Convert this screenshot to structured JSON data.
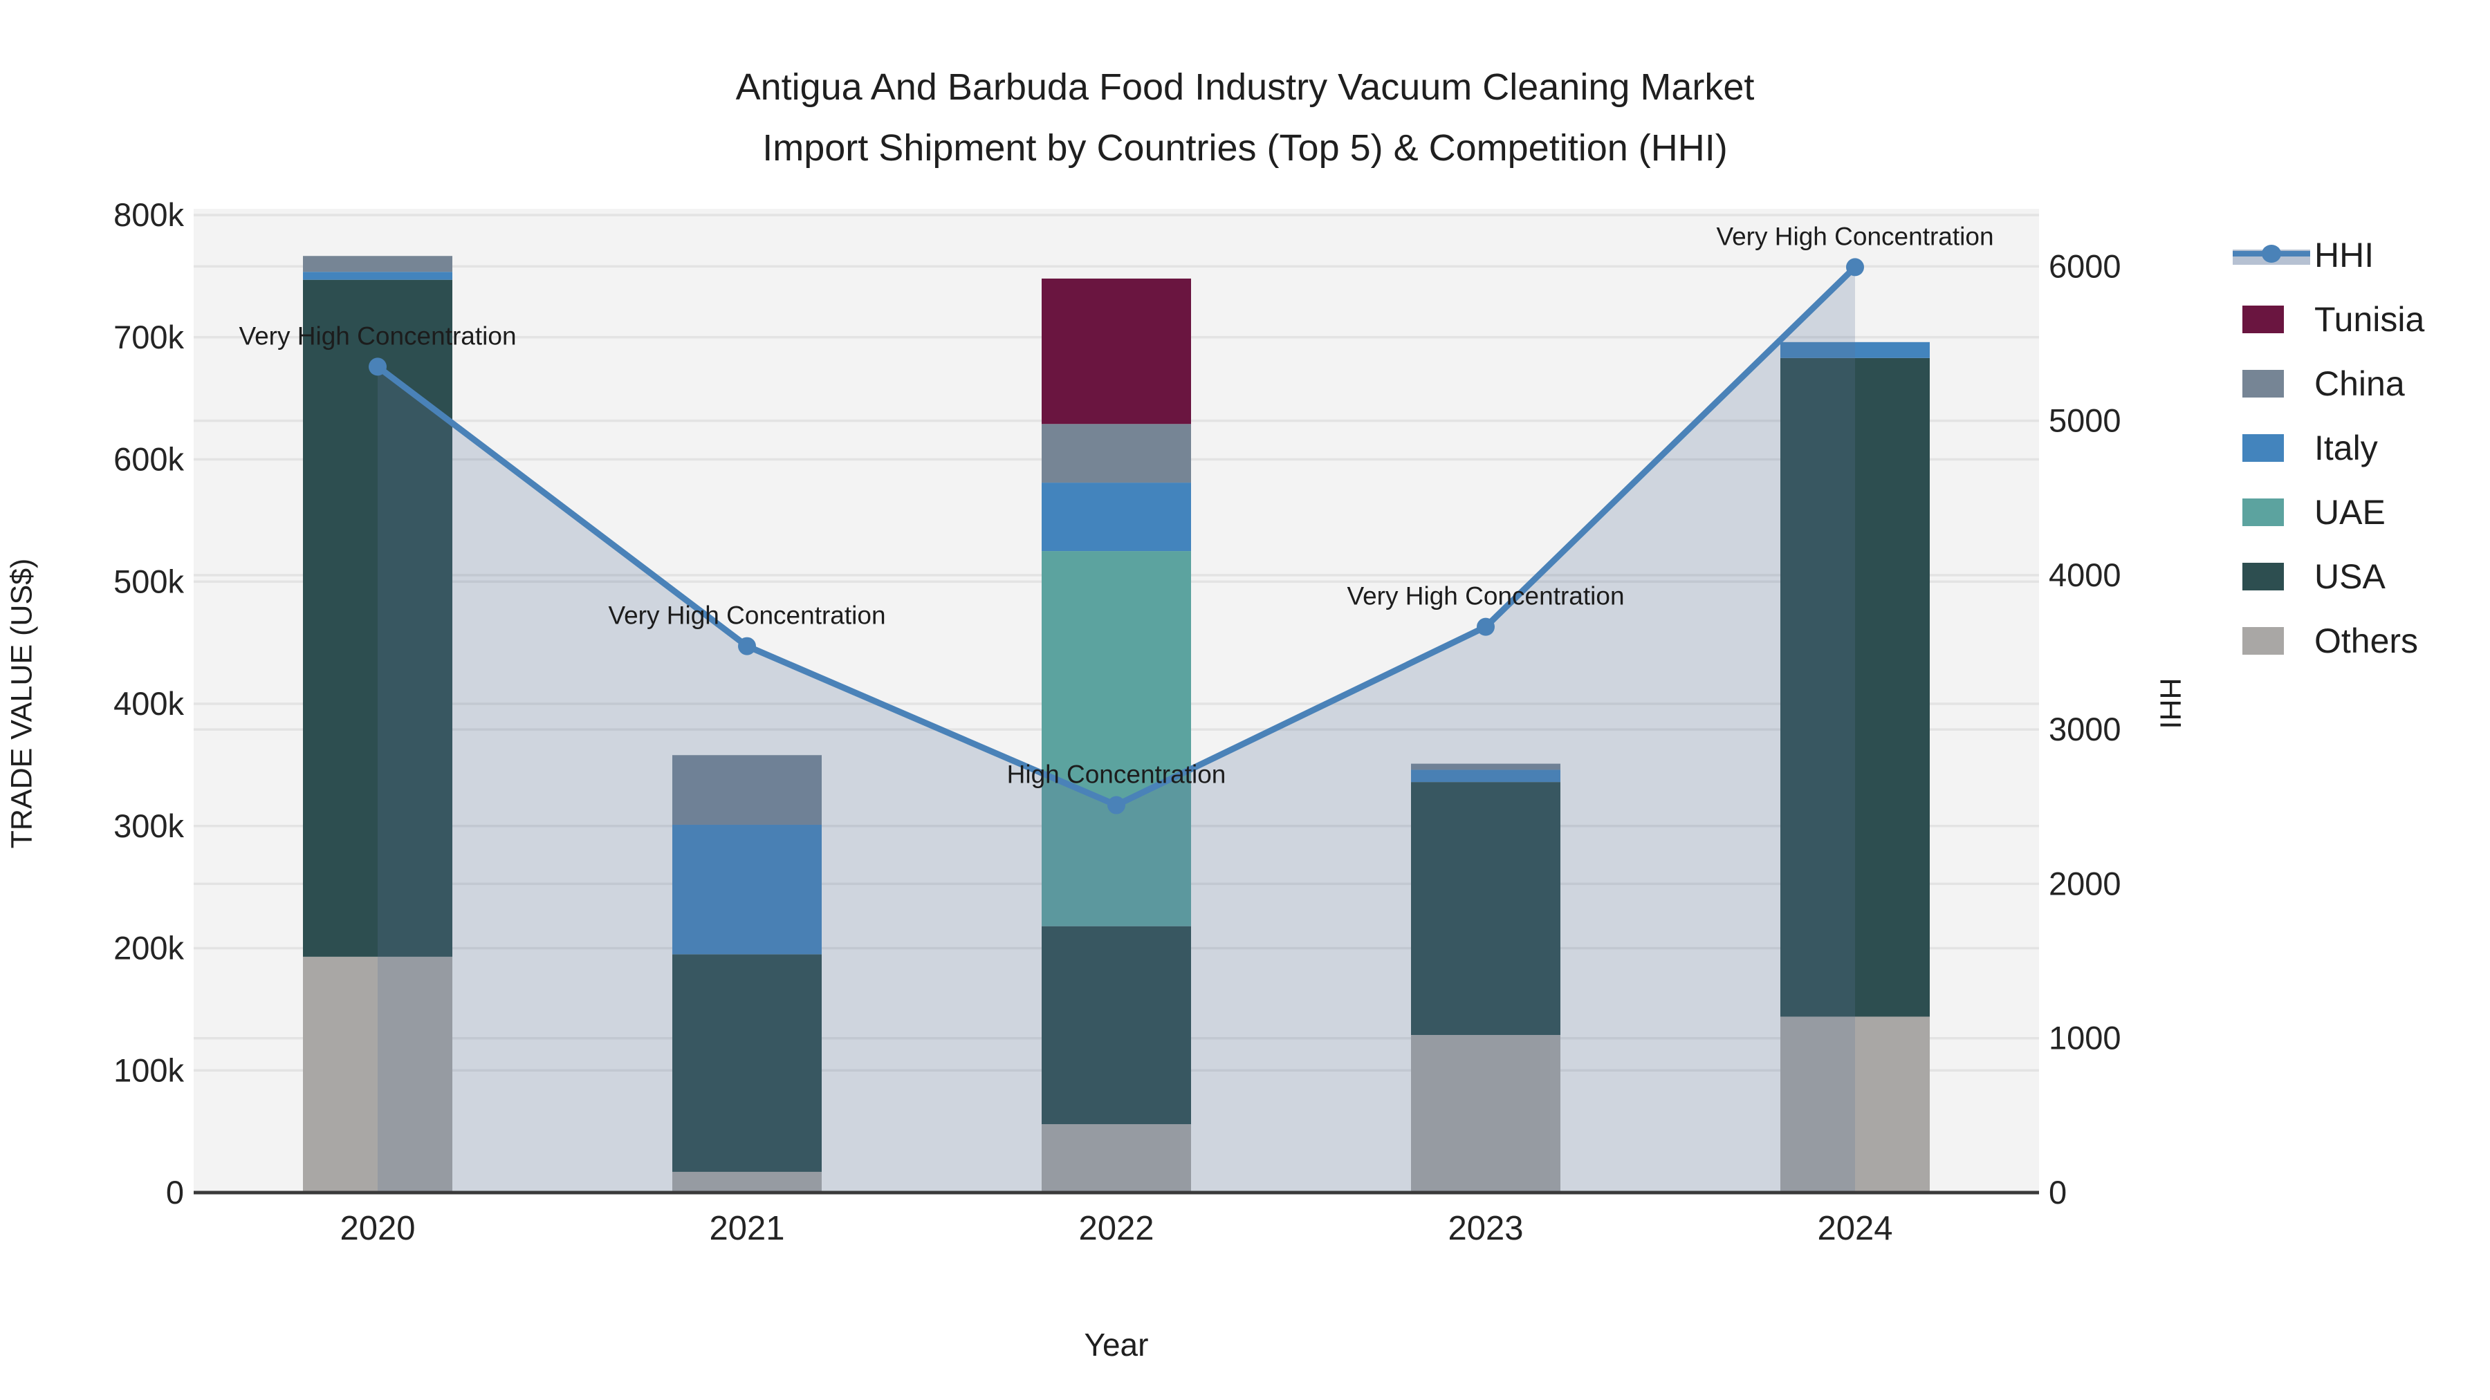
{
  "title": {
    "line1": "Antigua And Barbuda Food Industry Vacuum Cleaning Market",
    "line2": "Import Shipment by Countries (Top 5) & Competition (HHI)"
  },
  "axes": {
    "left": {
      "title": "TRADE VALUE (US$)",
      "tick_labels": [
        "0",
        "100k",
        "200k",
        "300k",
        "400k",
        "500k",
        "600k",
        "700k",
        "800k"
      ],
      "tick_values": [
        0,
        100000,
        200000,
        300000,
        400000,
        500000,
        600000,
        700000,
        800000
      ]
    },
    "right": {
      "title": "HHI",
      "tick_labels": [
        "0",
        "1000",
        "2000",
        "3000",
        "4000",
        "5000",
        "6000"
      ],
      "tick_values": [
        0,
        1000,
        2000,
        3000,
        4000,
        5000,
        6000
      ]
    },
    "x": {
      "title": "Year",
      "tick_labels": [
        "2020",
        "2021",
        "2022",
        "2023",
        "2024"
      ]
    }
  },
  "legend": {
    "items": [
      {
        "label": "HHI",
        "type": "line"
      },
      {
        "label": "Tunisia",
        "type": "box",
        "color": "#6a1540"
      },
      {
        "label": "China",
        "type": "box",
        "color": "#768595"
      },
      {
        "label": "Italy",
        "type": "box",
        "color": "#4384bd"
      },
      {
        "label": "UAE",
        "type": "box",
        "color": "#5ca39f"
      },
      {
        "label": "USA",
        "type": "box",
        "color": "#2d4e50"
      },
      {
        "label": "Others",
        "type": "box",
        "color": "#a9a7a5"
      }
    ]
  },
  "chart_data": {
    "type": "bar",
    "subtype": "stacked bars (left axis) + line with area fill (right axis)",
    "categories": [
      "2020",
      "2021",
      "2022",
      "2023",
      "2024"
    ],
    "stack_order_bottom_to_top": [
      "Others",
      "USA",
      "UAE",
      "Italy",
      "China",
      "Tunisia"
    ],
    "series": [
      {
        "name": "Others",
        "color": "#a9a7a5",
        "values": [
          193000,
          17000,
          56000,
          129000,
          144000
        ]
      },
      {
        "name": "USA",
        "color": "#2d4e50",
        "values": [
          554000,
          178000,
          162000,
          207000,
          539000
        ]
      },
      {
        "name": "UAE",
        "color": "#5ca39f",
        "values": [
          0,
          0,
          307000,
          0,
          0
        ]
      },
      {
        "name": "Italy",
        "color": "#4384bd",
        "values": [
          6500,
          106000,
          56000,
          10000,
          13000
        ]
      },
      {
        "name": "China",
        "color": "#768595",
        "values": [
          13000,
          57000,
          48000,
          5000,
          0
        ]
      },
      {
        "name": "Tunisia",
        "color": "#6a1540",
        "values": [
          0,
          0,
          119000,
          0,
          0
        ]
      }
    ],
    "line_series": {
      "name": "HHI",
      "color": "#4a82b8",
      "area_fill": "rgba(93,118,155,0.24)",
      "values": [
        5350,
        3540,
        2510,
        3665,
        5995
      ]
    },
    "annotations": [
      {
        "category": "2020",
        "text": "Very High Concentration"
      },
      {
        "category": "2021",
        "text": "Very High Concentration"
      },
      {
        "category": "2022",
        "text": "High Concentration"
      },
      {
        "category": "2023",
        "text": "Very High Concentration"
      },
      {
        "category": "2024",
        "text": "Very High Concentration"
      }
    ],
    "xlabel": "Year",
    "ylabel_left": "TRADE VALUE (US$)",
    "ylabel_right": "HHI",
    "ylim_left": [
      0,
      805100
    ],
    "ylim_right": [
      0,
      6373
    ],
    "grid": true,
    "legend_position": "right",
    "colors": {
      "plot_background": "#f3f3f3",
      "gridline": "#e3e3e3",
      "axis_line": "#3a3a3a",
      "annotation_text": "#1c1c1c"
    }
  }
}
